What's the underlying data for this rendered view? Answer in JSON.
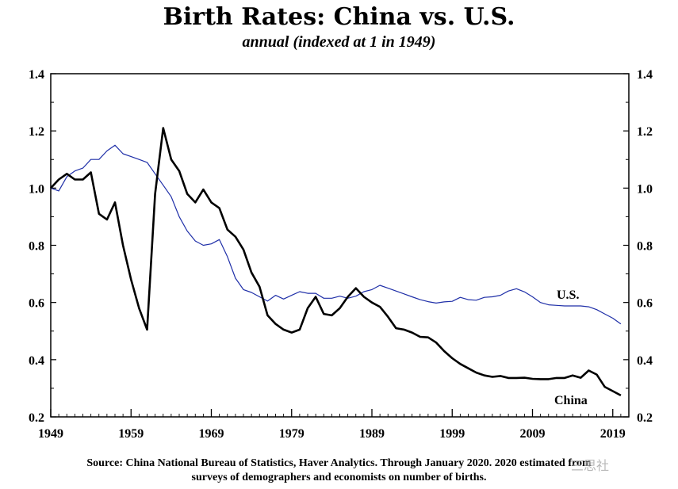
{
  "chart_data": {
    "type": "line",
    "title": "Birth Rates: China vs. U.S.",
    "subtitle": "annual (indexed at 1 in 1949)",
    "xlabel": "",
    "ylabel": "",
    "xlim": [
      1949,
      2021
    ],
    "ylim": [
      0.2,
      1.4
    ],
    "x_ticks": [
      1949,
      1959,
      1969,
      1979,
      1989,
      1999,
      2009,
      2019
    ],
    "y_ticks": [
      "0.2",
      "0.4",
      "0.6",
      "0.8",
      "1.0",
      "1.2",
      "1.4"
    ],
    "grid": false,
    "legend": "inline labels",
    "series": [
      {
        "name": "U.S.",
        "color": "#1f2fa8",
        "x": [
          1949,
          1950,
          1951,
          1952,
          1953,
          1954,
          1955,
          1956,
          1957,
          1958,
          1959,
          1960,
          1961,
          1962,
          1963,
          1964,
          1965,
          1966,
          1967,
          1968,
          1969,
          1970,
          1971,
          1972,
          1973,
          1974,
          1975,
          1976,
          1977,
          1978,
          1979,
          1980,
          1981,
          1982,
          1983,
          1984,
          1985,
          1986,
          1987,
          1988,
          1989,
          1990,
          1991,
          1992,
          1993,
          1994,
          1995,
          1996,
          1997,
          1998,
          1999,
          2000,
          2001,
          2002,
          2003,
          2004,
          2005,
          2006,
          2007,
          2008,
          2009,
          2010,
          2011,
          2012,
          2013,
          2014,
          2015,
          2016,
          2017,
          2018,
          2019,
          2020
        ],
        "values": [
          1.0,
          0.99,
          1.04,
          1.06,
          1.07,
          1.1,
          1.1,
          1.13,
          1.15,
          1.12,
          1.11,
          1.1,
          1.09,
          1.05,
          1.01,
          0.97,
          0.9,
          0.85,
          0.815,
          0.8,
          0.805,
          0.82,
          0.76,
          0.685,
          0.645,
          0.635,
          0.62,
          0.605,
          0.625,
          0.612,
          0.625,
          0.638,
          0.632,
          0.632,
          0.615,
          0.615,
          0.622,
          0.615,
          0.622,
          0.638,
          0.645,
          0.66,
          0.65,
          0.64,
          0.63,
          0.62,
          0.61,
          0.603,
          0.598,
          0.602,
          0.604,
          0.618,
          0.61,
          0.608,
          0.618,
          0.62,
          0.625,
          0.64,
          0.648,
          0.637,
          0.62,
          0.6,
          0.592,
          0.59,
          0.588,
          0.588,
          0.588,
          0.585,
          0.575,
          0.56,
          0.545,
          0.525
        ]
      },
      {
        "name": "China",
        "color": "#000000",
        "x": [
          1949,
          1950,
          1951,
          1952,
          1953,
          1954,
          1955,
          1956,
          1957,
          1958,
          1959,
          1960,
          1961,
          1962,
          1963,
          1964,
          1965,
          1966,
          1967,
          1968,
          1969,
          1970,
          1971,
          1972,
          1973,
          1974,
          1975,
          1976,
          1977,
          1978,
          1979,
          1980,
          1981,
          1982,
          1983,
          1984,
          1985,
          1986,
          1987,
          1988,
          1989,
          1990,
          1991,
          1992,
          1993,
          1994,
          1995,
          1996,
          1997,
          1998,
          1999,
          2000,
          2001,
          2002,
          2003,
          2004,
          2005,
          2006,
          2007,
          2008,
          2009,
          2010,
          2011,
          2012,
          2013,
          2014,
          2015,
          2016,
          2017,
          2018,
          2019,
          2020
        ],
        "values": [
          1.0,
          1.03,
          1.05,
          1.03,
          1.03,
          1.055,
          0.91,
          0.89,
          0.95,
          0.8,
          0.68,
          0.58,
          0.505,
          0.98,
          1.21,
          1.1,
          1.06,
          0.98,
          0.95,
          0.995,
          0.95,
          0.93,
          0.855,
          0.83,
          0.785,
          0.705,
          0.655,
          0.555,
          0.525,
          0.505,
          0.495,
          0.505,
          0.58,
          0.62,
          0.56,
          0.555,
          0.58,
          0.62,
          0.65,
          0.62,
          0.6,
          0.585,
          0.55,
          0.51,
          0.505,
          0.495,
          0.48,
          0.478,
          0.46,
          0.43,
          0.405,
          0.385,
          0.37,
          0.355,
          0.345,
          0.34,
          0.343,
          0.336,
          0.336,
          0.337,
          0.333,
          0.332,
          0.332,
          0.336,
          0.336,
          0.345,
          0.337,
          0.362,
          0.348,
          0.305,
          0.29,
          0.275
        ]
      }
    ],
    "annotations": [
      "U.S.",
      "China"
    ]
  },
  "source_text": {
    "line1": "Source: China National Bureau of Statistics, Haver Analytics.  Through January 2020. 2020 estimated from",
    "line2": "surveys of demographers and economists on number of births."
  },
  "watermark": "三思社"
}
